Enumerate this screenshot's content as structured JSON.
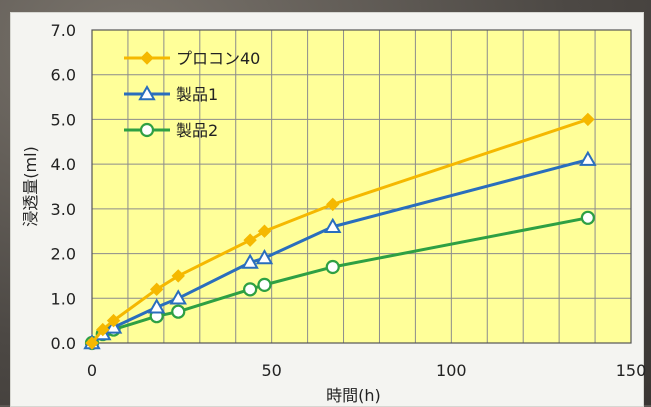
{
  "chart_data": {
    "type": "line",
    "title": "",
    "xlabel": "時間(h)",
    "ylabel": "浸透量(ml)",
    "xlim": [
      0,
      150
    ],
    "ylim": [
      0,
      7
    ],
    "x_ticks": [
      0,
      50,
      100,
      150
    ],
    "x_tick_labels": [
      "0",
      "50",
      "100",
      "150"
    ],
    "y_ticks": [
      0,
      1,
      2,
      3,
      4,
      5,
      6,
      7
    ],
    "y_tick_labels": [
      "0.0",
      "1.0",
      "2.0",
      "3.0",
      "4.0",
      "5.0",
      "6.0",
      "7.0"
    ],
    "grid": true,
    "legend_position": "top-left",
    "plot_background": "#ffff99",
    "grid_color": "#8c8c8c",
    "series": [
      {
        "name": "プロコン40",
        "color": "#f5b800",
        "marker": "diamond",
        "points": [
          [
            0,
            0.0
          ],
          [
            3,
            0.3
          ],
          [
            6,
            0.5
          ],
          [
            18,
            1.2
          ],
          [
            24,
            1.5
          ],
          [
            44,
            2.3
          ],
          [
            48,
            2.5
          ],
          [
            67,
            3.1
          ],
          [
            138,
            5.0
          ]
        ]
      },
      {
        "name": "製品1",
        "color": "#2a6ebd",
        "marker": "triangle",
        "points": [
          [
            0,
            0.0
          ],
          [
            3,
            0.2
          ],
          [
            6,
            0.35
          ],
          [
            18,
            0.8
          ],
          [
            24,
            1.0
          ],
          [
            44,
            1.8
          ],
          [
            48,
            1.9
          ],
          [
            67,
            2.6
          ],
          [
            138,
            4.1
          ]
        ]
      },
      {
        "name": "製品2",
        "color": "#2ea043",
        "marker": "circle",
        "points": [
          [
            0,
            0.0
          ],
          [
            3,
            0.2
          ],
          [
            6,
            0.3
          ],
          [
            18,
            0.6
          ],
          [
            24,
            0.7
          ],
          [
            44,
            1.2
          ],
          [
            48,
            1.3
          ],
          [
            67,
            1.7
          ],
          [
            138,
            2.8
          ]
        ]
      }
    ]
  }
}
